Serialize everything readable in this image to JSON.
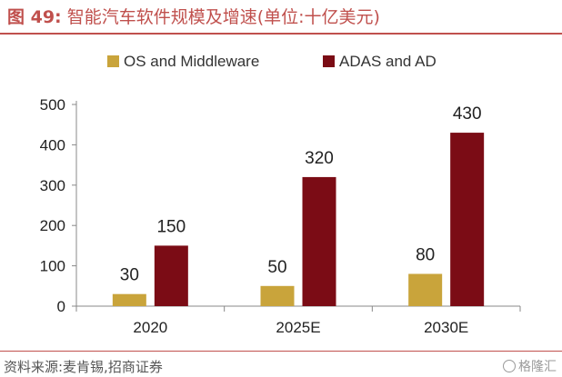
{
  "figure": {
    "label": "图 49:",
    "title": "智能汽车软件规模及增速(单位:十亿美元)"
  },
  "source": "资料来源:麦肯锡,招商证券",
  "watermark": "格隆汇",
  "colors": {
    "os": "#c9a43b",
    "adas": "#7b0c15",
    "accent": "#c0504d",
    "axis": "#888888"
  },
  "chart_data": {
    "type": "bar",
    "title": "",
    "xlabel": "",
    "ylabel": "",
    "categories": [
      "2020",
      "2025E",
      "2030E"
    ],
    "series": [
      {
        "name": "OS and Middleware",
        "values": [
          30,
          50,
          80
        ]
      },
      {
        "name": "ADAS and AD",
        "values": [
          150,
          320,
          430
        ]
      }
    ],
    "ylim": [
      0,
      500
    ],
    "yticks": [
      0,
      100,
      200,
      300,
      400,
      500
    ],
    "grid": false,
    "legend": "top-center",
    "data_labels": true
  }
}
